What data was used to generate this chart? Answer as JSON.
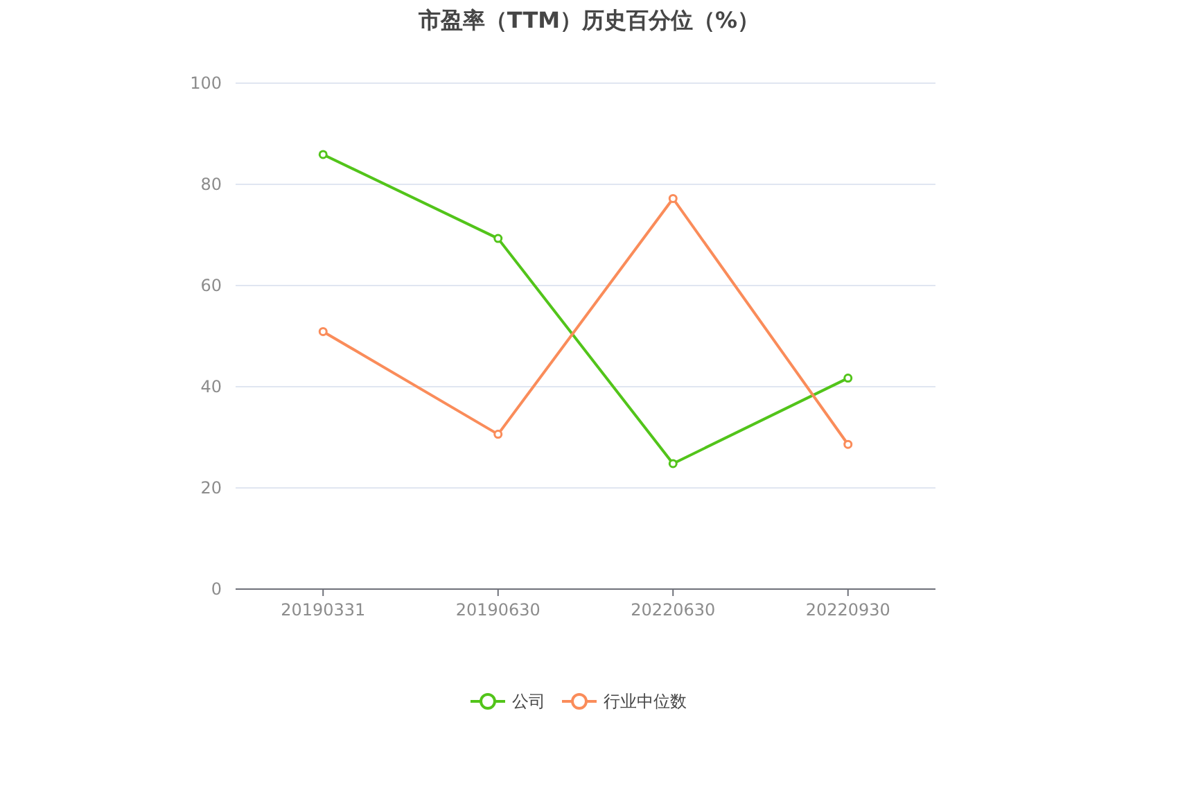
{
  "chart_data": {
    "type": "line",
    "title": "市盈率（TTM）历史百分位（%）",
    "categories": [
      "20190331",
      "20190630",
      "20220630",
      "20220930"
    ],
    "series": [
      {
        "name": "公司",
        "color": "#52c41a",
        "values": [
          85.9,
          69.3,
          24.8,
          41.7
        ]
      },
      {
        "name": "行业中位数",
        "color": "#fa8c5a",
        "values": [
          50.9,
          30.6,
          77.2,
          28.6
        ]
      }
    ],
    "ylim": [
      0,
      100
    ],
    "yticks": [
      0,
      20,
      40,
      60,
      80,
      100
    ],
    "grid": "y",
    "legend": "bottom",
    "marker": "circle",
    "line_style": "solid"
  }
}
